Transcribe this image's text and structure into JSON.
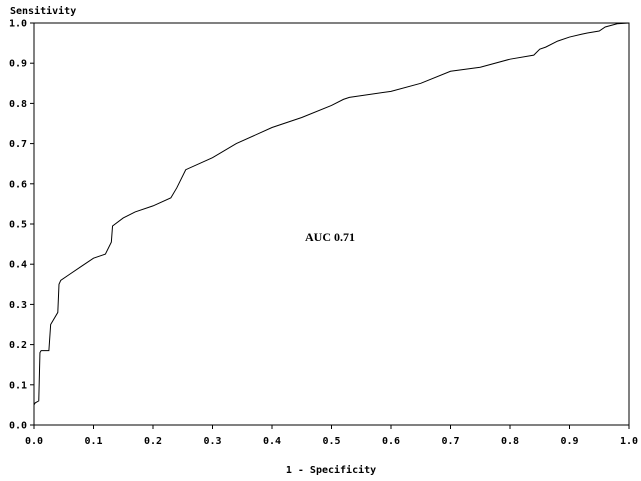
{
  "chart_data": {
    "type": "line",
    "title": "",
    "xlabel": "1 - Specificity",
    "ylabel": "Sensitivity",
    "xlim": [
      0.0,
      1.0
    ],
    "ylim": [
      0.0,
      1.0
    ],
    "x_ticks": [
      "0.0",
      "0.1",
      "0.2",
      "0.3",
      "0.4",
      "0.5",
      "0.6",
      "0.7",
      "0.8",
      "0.9",
      "1.0"
    ],
    "y_ticks": [
      "0.0",
      "0.1",
      "0.2",
      "0.3",
      "0.4",
      "0.5",
      "0.6",
      "0.7",
      "0.8",
      "0.9",
      "1.0"
    ],
    "grid": false,
    "annotations": [
      {
        "text": "AUC 0.71",
        "x": 0.5,
        "y": 0.48
      }
    ],
    "series": [
      {
        "line_color": "#000000",
        "x": [
          0.0,
          0.0,
          0.002,
          0.008,
          0.01,
          0.012,
          0.025,
          0.028,
          0.03,
          0.04,
          0.042,
          0.045,
          0.06,
          0.08,
          0.1,
          0.12,
          0.13,
          0.132,
          0.15,
          0.17,
          0.2,
          0.23,
          0.24,
          0.255,
          0.3,
          0.34,
          0.4,
          0.45,
          0.5,
          0.52,
          0.53,
          0.6,
          0.65,
          0.7,
          0.75,
          0.8,
          0.84,
          0.85,
          0.86,
          0.88,
          0.9,
          0.92,
          0.93,
          0.95,
          0.96,
          0.98,
          1.0
        ],
        "y": [
          0.0,
          0.05,
          0.055,
          0.06,
          0.18,
          0.185,
          0.185,
          0.25,
          0.255,
          0.28,
          0.35,
          0.36,
          0.375,
          0.395,
          0.415,
          0.425,
          0.455,
          0.495,
          0.515,
          0.53,
          0.545,
          0.565,
          0.59,
          0.635,
          0.665,
          0.7,
          0.74,
          0.765,
          0.795,
          0.81,
          0.815,
          0.83,
          0.85,
          0.88,
          0.89,
          0.91,
          0.92,
          0.935,
          0.94,
          0.955,
          0.965,
          0.972,
          0.975,
          0.98,
          0.99,
          0.998,
          1.0
        ]
      }
    ]
  }
}
